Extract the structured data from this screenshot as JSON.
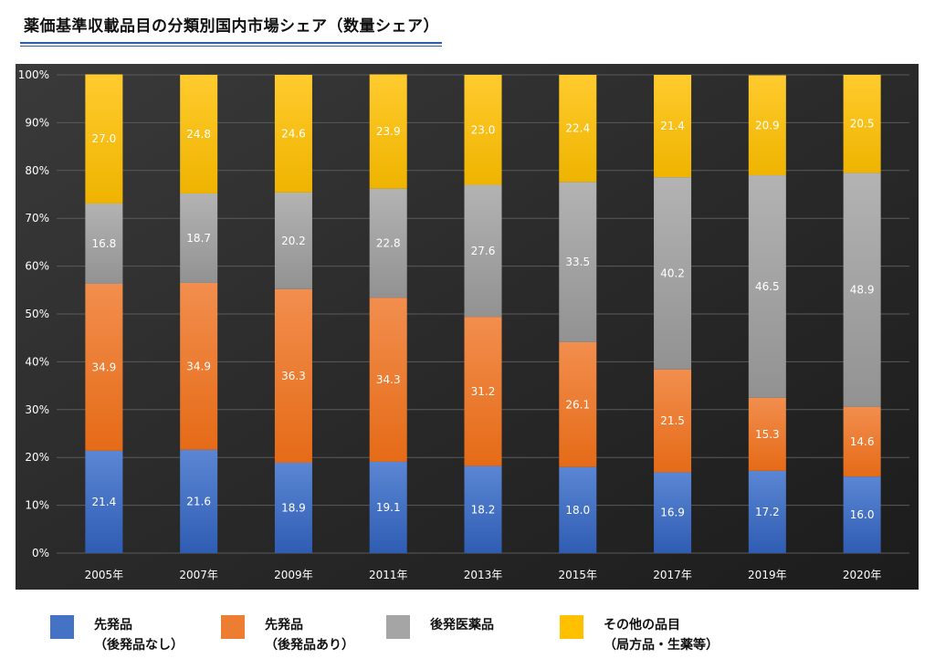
{
  "title": "薬価基準収載品目の分類別国内市場シェア（数量シェア）",
  "chart_data": {
    "type": "bar",
    "stacked": true,
    "categories": [
      "2005年",
      "2007年",
      "2009年",
      "2011年",
      "2013年",
      "2015年",
      "2017年",
      "2019年",
      "2020年"
    ],
    "series": [
      {
        "name": "先発品（後発品なし）",
        "color": "#4472c4",
        "values": [
          21.4,
          21.6,
          18.9,
          19.1,
          18.2,
          18.0,
          16.9,
          17.2,
          16.0
        ]
      },
      {
        "name": "先発品（後発品あり）",
        "color": "#ed7d31",
        "values": [
          34.9,
          34.9,
          36.3,
          34.3,
          31.2,
          26.1,
          21.5,
          15.3,
          14.6
        ]
      },
      {
        "name": "後発医薬品",
        "color": "#a5a5a5",
        "values": [
          16.8,
          18.7,
          20.2,
          22.8,
          27.6,
          33.5,
          40.2,
          46.5,
          48.9
        ]
      },
      {
        "name": "その他の品目（局方品・生薬等）",
        "color": "#ffc000",
        "values": [
          27.0,
          24.8,
          24.6,
          23.9,
          23.0,
          22.4,
          21.4,
          20.9,
          20.5
        ]
      }
    ],
    "y_ticks": [
      "0%",
      "10%",
      "20%",
      "30%",
      "40%",
      "50%",
      "60%",
      "70%",
      "80%",
      "90%",
      "100%"
    ],
    "ylim": [
      0,
      100
    ],
    "grid": true,
    "background": "#2b2b2b",
    "legend_placement": "bottom"
  },
  "legend": [
    {
      "line1": "先発品",
      "line2": "（後発品なし）",
      "color": "#4472c4"
    },
    {
      "line1": "先発品",
      "line2": "（後発品あり）",
      "color": "#ed7d31"
    },
    {
      "line1": "後発医薬品",
      "line2": "",
      "color": "#a5a5a5"
    },
    {
      "line1": "その他の品目",
      "line2": "（局方品・生薬等）",
      "color": "#ffc000"
    }
  ]
}
